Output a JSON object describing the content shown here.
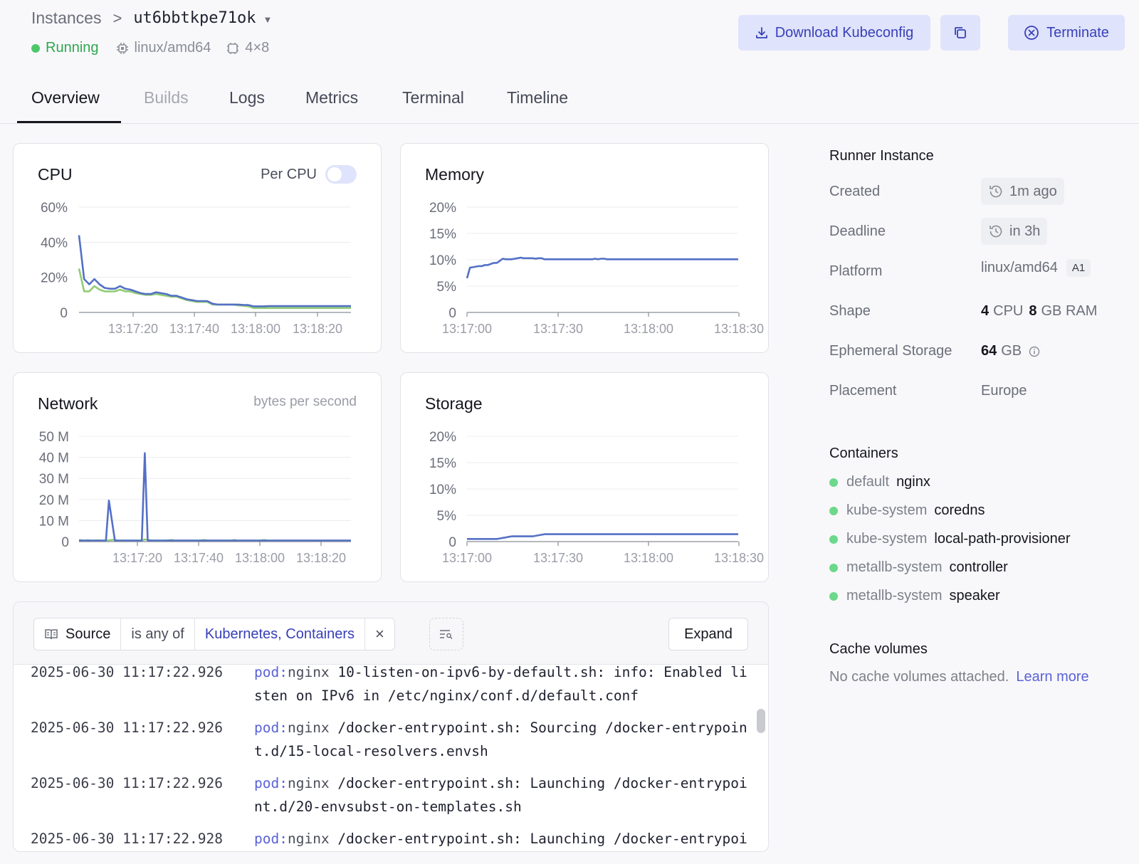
{
  "header": {
    "breadcrumb_root": "Instances",
    "breadcrumb_sep": ">",
    "instance_id": "ut6bbtkpe71ok",
    "status": "Running",
    "platform": "linux/amd64",
    "shape": "4×8",
    "download_label": "Download Kubeconfig",
    "terminate_label": "Terminate"
  },
  "tabs": [
    "Overview",
    "Builds",
    "Logs",
    "Metrics",
    "Terminal",
    "Timeline"
  ],
  "active_tab": "Overview",
  "colors": {
    "accent": "#3840b8",
    "series_blue": "#5470c6",
    "series_green": "#91cc75",
    "status_green": "#4cc86a"
  },
  "cards": {
    "cpu": {
      "title": "CPU",
      "toggle_label": "Per CPU"
    },
    "memory": {
      "title": "Memory"
    },
    "network": {
      "title": "Network",
      "subtitle": "bytes per second"
    },
    "storage": {
      "title": "Storage"
    }
  },
  "chart_data": [
    {
      "id": "cpu",
      "type": "line",
      "title": "CPU",
      "x_ticks": [
        "13:17:20",
        "13:17:40",
        "13:18:00",
        "13:18:20"
      ],
      "y_ticks": [
        "0",
        "20%",
        "40%",
        "60%"
      ],
      "ylim": [
        0,
        60
      ],
      "x": [
        0,
        1,
        2,
        3,
        4,
        5,
        6,
        7,
        8,
        9,
        10,
        11,
        12,
        13,
        14,
        15,
        16,
        17,
        18,
        19,
        20,
        21,
        22,
        23,
        24,
        25,
        26,
        27,
        28,
        29,
        30,
        31,
        32,
        33,
        34,
        35,
        36,
        37,
        38,
        39,
        40,
        41,
        42,
        43,
        44,
        45,
        46,
        47,
        48,
        49,
        50,
        51,
        52,
        53
      ],
      "series": [
        {
          "values": [
            44,
            19,
            16,
            19,
            16,
            14,
            13.5,
            13.5,
            15,
            13.5,
            13,
            12,
            11,
            10.5,
            10.5,
            11.5,
            11,
            10.5,
            9.5,
            9.5,
            8.5,
            7.5,
            7,
            6.5,
            6.5,
            6.5,
            5,
            4.5,
            4.5,
            4.5,
            4.5,
            4.5,
            4.3,
            4.2,
            3.5,
            3.5,
            3.5,
            3.6,
            3.6,
            3.6,
            3.6,
            3.6,
            3.6,
            3.6,
            3.6,
            3.6,
            3.6,
            3.6,
            3.6,
            3.6,
            3.6,
            3.6,
            3.6,
            3.6
          ]
        },
        {
          "values": [
            25,
            12,
            12,
            15,
            13,
            12,
            12,
            12,
            13,
            12,
            12,
            11,
            10.5,
            10,
            10,
            10.5,
            10,
            9.5,
            9,
            9,
            8,
            7,
            6.5,
            6,
            6,
            6,
            4.5,
            4.5,
            4.5,
            4.5,
            4.5,
            4,
            3.8,
            3.5,
            2.5,
            2.5,
            2.5,
            2.5,
            2.5,
            2.5,
            2.5,
            2.5,
            2.5,
            2.5,
            2.5,
            2.5,
            2.5,
            2.5,
            2.5,
            2.5,
            2.5,
            2.5,
            2.5,
            2.5
          ]
        }
      ]
    },
    {
      "id": "memory",
      "type": "line",
      "title": "Memory",
      "x_ticks": [
        "13:17:00",
        "13:17:30",
        "13:18:00",
        "13:18:30"
      ],
      "y_ticks": [
        "0",
        "5%",
        "10%",
        "15%",
        "20%"
      ],
      "ylim": [
        0,
        20
      ],
      "x": [
        0,
        1,
        2,
        3,
        4,
        5,
        6,
        7,
        8,
        9,
        10,
        11,
        12,
        13,
        14,
        15,
        16,
        17,
        18,
        19,
        20,
        21,
        22,
        23,
        24,
        25,
        26,
        27,
        28,
        29,
        30,
        31,
        32,
        33,
        34,
        35,
        36,
        37,
        38,
        39,
        40,
        41,
        42,
        43,
        44,
        45,
        46,
        47,
        48,
        49,
        50,
        51,
        52,
        53,
        54,
        55,
        56,
        57,
        58,
        59,
        60,
        61,
        62,
        63,
        64,
        65,
        66,
        67,
        68,
        69,
        70,
        71,
        72,
        73,
        74,
        75,
        76,
        77,
        78,
        79,
        80,
        81,
        82,
        83,
        84,
        85,
        86,
        87,
        88,
        89,
        90,
        91
      ],
      "series": [
        {
          "values": [
            6.5,
            8.5,
            8.6,
            8.7,
            8.8,
            8.8,
            9.0,
            9.0,
            9.2,
            9.4,
            9.4,
            9.8,
            10.2,
            10.1,
            10.1,
            10.1,
            10.2,
            10.3,
            10.4,
            10.3,
            10.3,
            10.3,
            10.3,
            10.2,
            10.3,
            10.3,
            10.1,
            10.1,
            10.1,
            10.1,
            10.1,
            10.1,
            10.1,
            10.1,
            10.1,
            10.1,
            10.1,
            10.1,
            10.1,
            10.1,
            10.1,
            10.1,
            10.1,
            10.2,
            10.1,
            10.2,
            10.2,
            10.1,
            10.1,
            10.1,
            10.1,
            10.1,
            10.1,
            10.1,
            10.1,
            10.1,
            10.1,
            10.1,
            10.1,
            10.1,
            10.1,
            10.1,
            10.1,
            10.1,
            10.1,
            10.1,
            10.1,
            10.1,
            10.1,
            10.1,
            10.1,
            10.1,
            10.1,
            10.1,
            10.1,
            10.1,
            10.1,
            10.1,
            10.1,
            10.1,
            10.1,
            10.1,
            10.1,
            10.1,
            10.1,
            10.1,
            10.1,
            10.1,
            10.1,
            10.1,
            10.1,
            10.1
          ]
        }
      ]
    },
    {
      "id": "network",
      "type": "line",
      "title": "Network",
      "x_ticks": [
        "13:17:20",
        "13:17:40",
        "13:18:00",
        "13:18:20"
      ],
      "y_ticks": [
        "0",
        "10 M",
        "20 M",
        "30 M",
        "40 M",
        "50 M"
      ],
      "ylim": [
        0,
        50
      ],
      "x": [
        0,
        1,
        2,
        3,
        4,
        5,
        6,
        7,
        8,
        9,
        10,
        11,
        12,
        13,
        14,
        15,
        16,
        17,
        18,
        19,
        20,
        21,
        22,
        23,
        24,
        25,
        26,
        27,
        28,
        29,
        30,
        31,
        32,
        33,
        34,
        35,
        36,
        37,
        38,
        39,
        40,
        41,
        42,
        43,
        44,
        45,
        46,
        47,
        48,
        49,
        50,
        51,
        52,
        53,
        54,
        55,
        56,
        57,
        58,
        59,
        60,
        61,
        62,
        63,
        64,
        65,
        66,
        67,
        68,
        69,
        70,
        71,
        72,
        73,
        74,
        75,
        76,
        77,
        78,
        79,
        80,
        81,
        82,
        83,
        84,
        85,
        86,
        87,
        88,
        89,
        90,
        91
      ],
      "series": [
        {
          "values": [
            0.5,
            0.5,
            0.5,
            0.5,
            0.5,
            0.5,
            0.5,
            0.5,
            0.5,
            0.5,
            19.5,
            10,
            0.5,
            0.5,
            0.5,
            0.5,
            0.5,
            0.5,
            0.5,
            0.5,
            0.5,
            0.5,
            42,
            0.5,
            0.5,
            0.5,
            0.5,
            0.5,
            0.5,
            0.5,
            0.5,
            0.5,
            0.5,
            0.5,
            0.5,
            0.5,
            0.5,
            0.5,
            0.5,
            0.5,
            0.5,
            0.5,
            0.5,
            0.5,
            0.5,
            0.5,
            0.5,
            0.5,
            0.5,
            0.5,
            0.5,
            0.5,
            0.5,
            0.5,
            0.5,
            0.5,
            0.5,
            0.5,
            0.5,
            0.5,
            0.5,
            0.5,
            0.5,
            0.5,
            0.5,
            0.5,
            0.5,
            0.5,
            0.5,
            0.5,
            0.5,
            0.5,
            0.5,
            0.5,
            0.5,
            0.5,
            0.5,
            0.5,
            0.5,
            0.5,
            0.5,
            0.5,
            0.5,
            0.5,
            0.5,
            0.5,
            0.5,
            0.5,
            0.5,
            0.5,
            0.5,
            0.5
          ]
        },
        {
          "values": [
            0.8,
            0.6,
            0.5,
            0.7,
            0.5,
            0.5,
            0.6,
            0.5,
            0.5,
            0.5,
            0.6,
            0.8,
            0.8,
            0.5,
            0.5,
            0.5,
            0.5,
            0.5,
            0.5,
            0.5,
            0.5,
            0.5,
            1,
            0.8,
            0.6,
            0.5,
            0.5,
            0.5,
            0.5,
            0.5,
            0.6,
            0.8,
            0.5,
            0.5,
            0.5,
            0.5,
            0.5,
            0.5,
            0.5,
            0.5,
            0.5,
            0.6,
            0.8,
            0.5,
            0.5,
            0.5,
            0.5,
            0.5,
            0.5,
            0.5,
            0.5,
            0.5,
            0.8,
            0.5,
            0.5,
            0.5,
            0.5,
            0.5,
            0.5,
            0.5,
            0.5,
            0.6,
            0.8,
            0.5,
            0.5,
            0.5,
            0.5,
            0.5,
            0.5,
            0.5,
            0.5,
            0.5,
            0.5,
            0.5,
            0.5,
            0.5,
            0.5,
            0.5,
            0.5,
            0.5,
            0.5,
            0.5,
            0.5,
            0.5,
            0.5,
            0.5,
            0.5,
            0.5,
            0.5,
            0.5,
            0.5,
            0.5
          ]
        }
      ]
    },
    {
      "id": "storage",
      "type": "line",
      "title": "Storage",
      "x_ticks": [
        "13:17:00",
        "13:17:30",
        "13:18:00",
        "13:18:30"
      ],
      "y_ticks": [
        "0",
        "5%",
        "10%",
        "15%",
        "20%"
      ],
      "ylim": [
        0,
        20
      ],
      "x": [
        0,
        1,
        2,
        3,
        4,
        5,
        6,
        7,
        8,
        9,
        10,
        11,
        12,
        13,
        14,
        15,
        16,
        17,
        18,
        19,
        20,
        21,
        22,
        23,
        24,
        25,
        26,
        27,
        28,
        29,
        30,
        31,
        32,
        33,
        34,
        35,
        36,
        37,
        38,
        39,
        40,
        41,
        42,
        43,
        44,
        45,
        46,
        47,
        48,
        49,
        50,
        51,
        52,
        53,
        54,
        55,
        56,
        57,
        58,
        59,
        60,
        61,
        62,
        63,
        64,
        65,
        66,
        67,
        68,
        69,
        70,
        71,
        72,
        73,
        74,
        75,
        76,
        77,
        78,
        79,
        80,
        81,
        82,
        83,
        84,
        85,
        86,
        87,
        88,
        89,
        90,
        91
      ],
      "series": [
        {
          "values": [
            0.5,
            0.5,
            0.5,
            0.5,
            0.5,
            0.5,
            0.5,
            0.5,
            0.5,
            0.5,
            0.5,
            0.6,
            0.7,
            0.8,
            0.9,
            1,
            1,
            1,
            1,
            1,
            1,
            1,
            1,
            1.1,
            1.2,
            1.3,
            1.4,
            1.4,
            1.4,
            1.4,
            1.4,
            1.4,
            1.4,
            1.4,
            1.4,
            1.4,
            1.4,
            1.4,
            1.4,
            1.4,
            1.4,
            1.4,
            1.4,
            1.4,
            1.4,
            1.4,
            1.4,
            1.4,
            1.4,
            1.4,
            1.4,
            1.4,
            1.4,
            1.4,
            1.4,
            1.4,
            1.4,
            1.4,
            1.4,
            1.4,
            1.4,
            1.4,
            1.4,
            1.4,
            1.4,
            1.4,
            1.4,
            1.4,
            1.4,
            1.4,
            1.4,
            1.4,
            1.4,
            1.4,
            1.4,
            1.4,
            1.4,
            1.4,
            1.4,
            1.4,
            1.4,
            1.4,
            1.4,
            1.4,
            1.4,
            1.4,
            1.4,
            1.4,
            1.4,
            1.4,
            1.4,
            1.4
          ]
        }
      ]
    }
  ],
  "logs": {
    "filter_field": "Source",
    "filter_op": "is any of",
    "filter_values": "Kubernetes, Containers",
    "expand_label": "Expand",
    "lines": [
      {
        "ts": "2025-06-30 11:17:22.926",
        "pod_key": "pod:",
        "pod_name": "nginx",
        "msg": "10-listen-on-ipv6-by-default.sh: info: Enabled listen on IPv6 in /etc/nginx/conf.d/default.conf"
      },
      {
        "ts": "2025-06-30 11:17:22.926",
        "pod_key": "pod:",
        "pod_name": "nginx",
        "msg": "/docker-entrypoint.sh: Sourcing /docker-entrypoint.d/15-local-resolvers.envsh"
      },
      {
        "ts": "2025-06-30 11:17:22.926",
        "pod_key": "pod:",
        "pod_name": "nginx",
        "msg": "/docker-entrypoint.sh: Launching /docker-entrypoint.d/20-envsubst-on-templates.sh"
      },
      {
        "ts": "2025-06-30 11:17:22.928",
        "pod_key": "pod:",
        "pod_name": "nginx",
        "msg": "/docker-entrypoint.sh: Launching /docker-entrypoi"
      }
    ]
  },
  "sidebar": {
    "runner_title": "Runner Instance",
    "created_label": "Created",
    "created_value": "1m ago",
    "deadline_label": "Deadline",
    "deadline_value": "in 3h",
    "platform_label": "Platform",
    "platform_value": "linux/amd64",
    "platform_tag": "A1",
    "shape_label": "Shape",
    "shape_cpu_num": "4",
    "shape_cpu_unit": "CPU",
    "shape_ram_num": "8",
    "shape_ram_unit": "GB RAM",
    "storage_label": "Ephemeral Storage",
    "storage_num": "64",
    "storage_unit": "GB",
    "placement_label": "Placement",
    "placement_value": "Europe",
    "containers_title": "Containers",
    "containers": [
      {
        "ns": "default",
        "name": "nginx"
      },
      {
        "ns": "kube-system",
        "name": "coredns"
      },
      {
        "ns": "kube-system",
        "name": "local-path-provisioner"
      },
      {
        "ns": "metallb-system",
        "name": "controller"
      },
      {
        "ns": "metallb-system",
        "name": "speaker"
      }
    ],
    "cache_title": "Cache volumes",
    "cache_text": "No cache volumes attached.",
    "cache_link": "Learn more"
  }
}
